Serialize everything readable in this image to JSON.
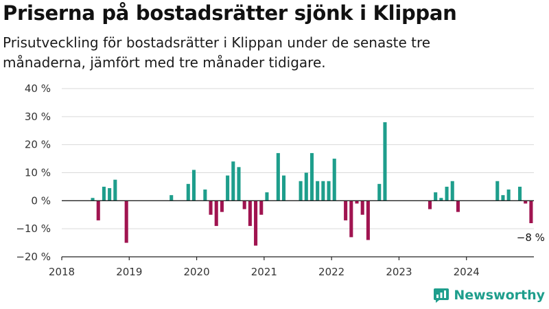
{
  "chart_data": {
    "type": "bar",
    "title": "Priserna på bostadsrätter sjönk i Klippan",
    "subtitle": "Prisutveckling för bostadsrätter i Klippan under de senaste tre månaderna, jämfört med tre månader tidigare.",
    "xlabel": "",
    "ylabel": "",
    "ylim": [
      -20,
      40
    ],
    "yticks": [
      -20,
      -10,
      0,
      10,
      20,
      30,
      40
    ],
    "ytick_labels": [
      "−20 %",
      "−10 %",
      "0 %",
      "10 %",
      "20 %",
      "30 %",
      "40 %"
    ],
    "xlim": [
      "2018-01",
      "2024-12"
    ],
    "xticks": [
      "2018-01",
      "2019-01",
      "2020-01",
      "2021-01",
      "2022-01",
      "2023-01",
      "2024-01"
    ],
    "xtick_labels": [
      "2018",
      "2019",
      "2020",
      "2021",
      "2022",
      "2023",
      "2024"
    ],
    "grid": "horizontal",
    "legend": "none",
    "colors": {
      "positive": "#1e9e8c",
      "negative": "#a01450",
      "grid": "#d9d9d9",
      "zero_line": "#222222"
    },
    "data": [
      {
        "x": "2018-06",
        "y": 1
      },
      {
        "x": "2018-07",
        "y": -7
      },
      {
        "x": "2018-08",
        "y": 5
      },
      {
        "x": "2018-09",
        "y": 4.5
      },
      {
        "x": "2018-10",
        "y": 7.5
      },
      {
        "x": "2018-12",
        "y": -15
      },
      {
        "x": "2019-08",
        "y": 2
      },
      {
        "x": "2019-11",
        "y": 6
      },
      {
        "x": "2019-12",
        "y": 11
      },
      {
        "x": "2020-02",
        "y": 4
      },
      {
        "x": "2020-03",
        "y": -5
      },
      {
        "x": "2020-04",
        "y": -9
      },
      {
        "x": "2020-05",
        "y": -4
      },
      {
        "x": "2020-06",
        "y": 9
      },
      {
        "x": "2020-07",
        "y": 14
      },
      {
        "x": "2020-08",
        "y": 12
      },
      {
        "x": "2020-09",
        "y": -3
      },
      {
        "x": "2020-10",
        "y": -9
      },
      {
        "x": "2020-11",
        "y": -16
      },
      {
        "x": "2020-12",
        "y": -5
      },
      {
        "x": "2021-01",
        "y": 3
      },
      {
        "x": "2021-03",
        "y": 17
      },
      {
        "x": "2021-04",
        "y": 9
      },
      {
        "x": "2021-07",
        "y": 7
      },
      {
        "x": "2021-08",
        "y": 10
      },
      {
        "x": "2021-09",
        "y": 17
      },
      {
        "x": "2021-10",
        "y": 7
      },
      {
        "x": "2021-11",
        "y": 7
      },
      {
        "x": "2021-12",
        "y": 7
      },
      {
        "x": "2022-01",
        "y": 15
      },
      {
        "x": "2022-03",
        "y": -7
      },
      {
        "x": "2022-04",
        "y": -13
      },
      {
        "x": "2022-05",
        "y": -1
      },
      {
        "x": "2022-06",
        "y": -5
      },
      {
        "x": "2022-07",
        "y": -14
      },
      {
        "x": "2022-09",
        "y": 6
      },
      {
        "x": "2022-10",
        "y": 28
      },
      {
        "x": "2023-06",
        "y": -3
      },
      {
        "x": "2023-07",
        "y": 3
      },
      {
        "x": "2023-08",
        "y": 1
      },
      {
        "x": "2023-09",
        "y": 5
      },
      {
        "x": "2023-10",
        "y": 7
      },
      {
        "x": "2023-11",
        "y": -4
      },
      {
        "x": "2024-06",
        "y": 7
      },
      {
        "x": "2024-07",
        "y": 2
      },
      {
        "x": "2024-08",
        "y": 4
      },
      {
        "x": "2024-10",
        "y": 5
      },
      {
        "x": "2024-11",
        "y": -1
      },
      {
        "x": "2024-12",
        "y": -8
      }
    ],
    "annotations": [
      {
        "x": "2024-12",
        "y": -8,
        "text": "−8 %"
      }
    ]
  },
  "brand": {
    "name": "Newsworthy",
    "icon": "newsworthy-logo-icon"
  }
}
